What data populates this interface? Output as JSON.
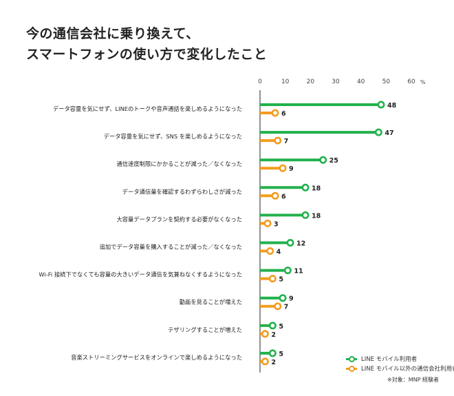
{
  "title_lines": [
    "今の通信会社に乗り換えて、",
    "スマートフォンの使い方で変化したこと"
  ],
  "note": "※対象：MNP 経験者",
  "colors": {
    "line_mobile": "#22b14c",
    "other": "#f39c1f"
  },
  "chart_data": {
    "type": "dot-bar",
    "xlim": [
      0,
      60
    ],
    "xticks": [
      0,
      10,
      20,
      30,
      40,
      50,
      60
    ],
    "xunit": "%",
    "categories": [
      "データ容量を気にせず、LINEのトークや音声通話を楽しめるようになった",
      "データ容量を気にせず、SNS を楽しめるようになった",
      "通信速度制限にかかることが減った／なくなった",
      "データ通信量を確認するわずらわしさが減った",
      "大容量データプランを契約する必要がなくなった",
      "追加でデータ容量を購入することが減った／なくなった",
      "Wi-Fi 接続下でなくても容量の大きいデータ通信を気兼ねなくするようになった",
      "動画を見ることが増えた",
      "テザリングすることが増えた",
      "音楽ストリーミングサービスをオンラインで楽しめるようになった"
    ],
    "series": [
      {
        "name": "LINE モバイル利用者",
        "color": "#22b14c",
        "values": [
          48,
          47,
          25,
          18,
          18,
          12,
          11,
          9,
          5,
          5
        ]
      },
      {
        "name": "LINE モバイル以外の通信会社利用者",
        "color": "#f39c1f",
        "values": [
          6,
          7,
          9,
          6,
          3,
          4,
          5,
          7,
          2,
          2
        ]
      }
    ]
  }
}
